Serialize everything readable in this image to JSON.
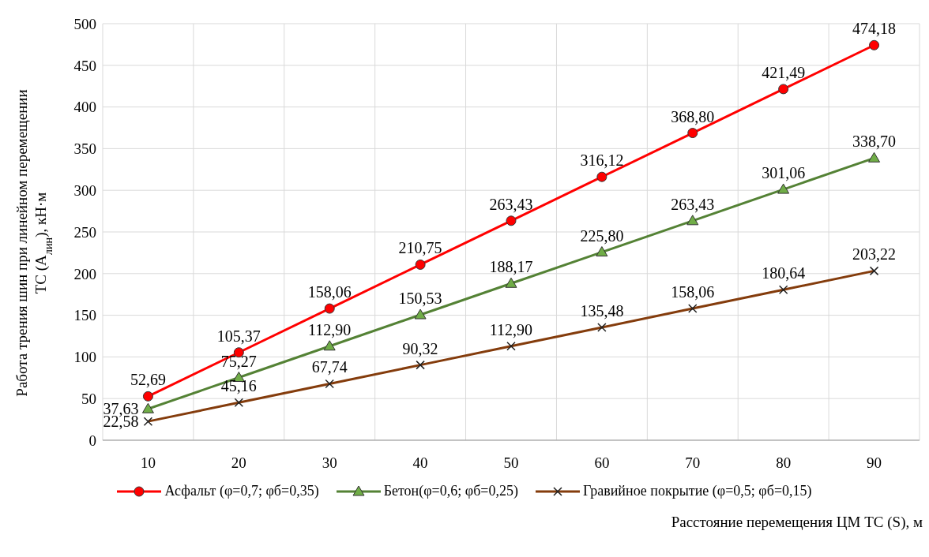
{
  "chart_data": {
    "type": "line",
    "xlabel": "Расстояние перемещения ЦМ ТС (S), м",
    "ylabel": "Работа трения шин при линейном перемещении ТС (A$_{лин}$), кН·м",
    "categories": [
      "10",
      "20",
      "30",
      "40",
      "50",
      "60",
      "70",
      "80",
      "90"
    ],
    "series": [
      {
        "name": "Асфальт (φ=0,7; φб=0,35)",
        "color": "#ff0000",
        "marker": "circle",
        "values": [
          52.69,
          105.37,
          158.06,
          210.75,
          263.43,
          316.12,
          368.8,
          421.49,
          474.18
        ],
        "value_labels": [
          "52,69",
          "105,37",
          "158,06",
          "210,75",
          "263,43",
          "316,12",
          "368,80",
          "421,49",
          "474,18"
        ]
      },
      {
        "name": "Бетон(φ=0,6; φб=0,25)",
        "color": "#548235",
        "marker": "triangle",
        "values": [
          37.63,
          75.27,
          112.9,
          150.53,
          188.17,
          225.8,
          263.43,
          301.06,
          338.7
        ],
        "value_labels": [
          "37,63",
          "75,27",
          "112,90",
          "150,53",
          "188,17",
          "225,80",
          "263,43",
          "301,06",
          "338,70"
        ]
      },
      {
        "name": "Гравийное покрытие (φ=0,5; φб=0,15)",
        "color": "#843c0c",
        "marker": "cross",
        "values": [
          22.58,
          45.16,
          67.74,
          90.32,
          112.9,
          135.48,
          158.06,
          180.64,
          203.22
        ],
        "value_labels": [
          "22,58",
          "45,16",
          "67,74",
          "90,32",
          "112,90",
          "135,48",
          "158,06",
          "180,64",
          "203,22"
        ]
      }
    ],
    "ylim": [
      0,
      500
    ],
    "yticks": [
      0,
      50,
      100,
      150,
      200,
      250,
      300,
      350,
      400,
      450,
      500
    ],
    "grid": true,
    "legend": "bottom",
    "line_style": "solid"
  }
}
